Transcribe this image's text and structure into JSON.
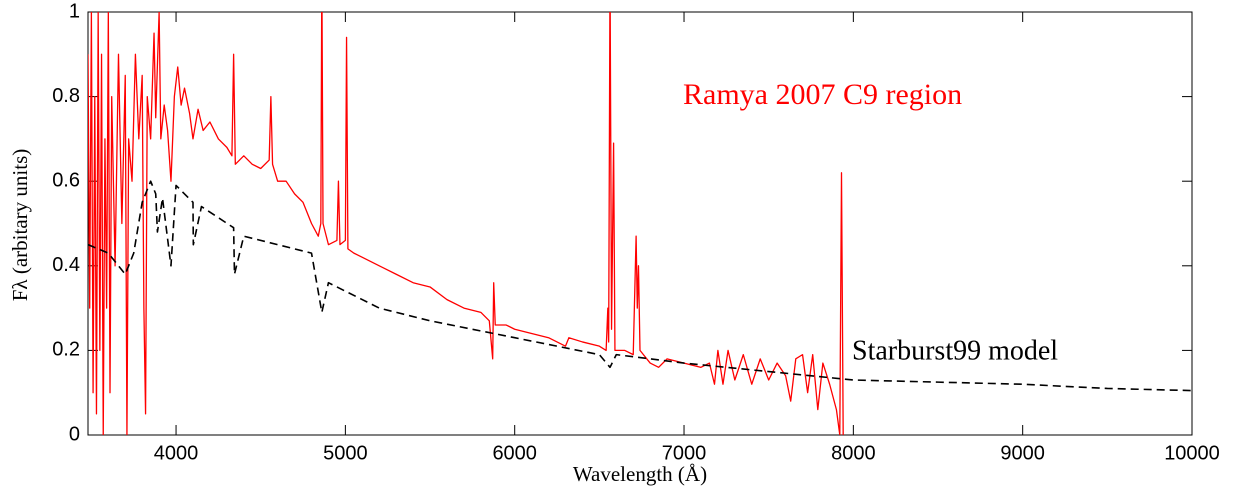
{
  "chart_data": {
    "type": "line",
    "x_label": "Wavelength (Å)",
    "y_label": "Fλ (arbitary units)",
    "xlim": [
      3480,
      10000
    ],
    "xticks": [
      4000,
      5000,
      6000,
      7000,
      8000,
      9000,
      10000
    ],
    "ylim": [
      0,
      1
    ],
    "yticks": [
      0,
      0.2,
      0.4,
      0.6,
      0.8,
      1
    ],
    "grid": false,
    "series": [
      {
        "name": "Ramya 2007 C9 region",
        "color": "#ff0000",
        "dash": false,
        "x": [
          3480,
          3490,
          3500,
          3510,
          3520,
          3530,
          3540,
          3550,
          3560,
          3570,
          3580,
          3590,
          3600,
          3610,
          3620,
          3640,
          3660,
          3680,
          3700,
          3710,
          3720,
          3740,
          3760,
          3780,
          3800,
          3810,
          3820,
          3830,
          3850,
          3870,
          3880,
          3900,
          3910,
          3930,
          3950,
          3970,
          3990,
          4010,
          4030,
          4050,
          4080,
          4100,
          4130,
          4160,
          4200,
          4250,
          4300,
          4330,
          4340,
          4350,
          4400,
          4450,
          4500,
          4550,
          4560,
          4570,
          4600,
          4650,
          4700,
          4750,
          4800,
          4840,
          4855,
          4861,
          4868,
          4900,
          4950,
          4959,
          4968,
          5000,
          5007,
          5015,
          5050,
          5100,
          5200,
          5300,
          5400,
          5500,
          5600,
          5700,
          5800,
          5850,
          5870,
          5876,
          5885,
          5950,
          6000,
          6100,
          6200,
          6300,
          6320,
          6400,
          6500,
          6540,
          6550,
          6555,
          6563,
          6572,
          6584,
          6592,
          6650,
          6700,
          6717,
          6724,
          6731,
          6740,
          6800,
          6850,
          6900,
          7000,
          7100,
          7150,
          7180,
          7200,
          7230,
          7260,
          7300,
          7350,
          7400,
          7450,
          7500,
          7550,
          7600,
          7630,
          7660,
          7700,
          7730,
          7760,
          7790,
          7820,
          7860,
          7900,
          7920,
          7930,
          7940
        ],
        "values": [
          0.9,
          0.3,
          1.0,
          0.1,
          0.8,
          0.05,
          1.0,
          0.2,
          0.9,
          0.0,
          0.7,
          0.3,
          1.0,
          0.1,
          0.8,
          0.4,
          0.9,
          0.5,
          0.85,
          0.0,
          0.7,
          0.6,
          0.9,
          0.7,
          0.85,
          0.3,
          0.05,
          0.8,
          0.7,
          0.95,
          0.75,
          1.0,
          0.7,
          0.78,
          0.72,
          0.6,
          0.8,
          0.87,
          0.78,
          0.82,
          0.76,
          0.7,
          0.77,
          0.72,
          0.74,
          0.7,
          0.68,
          0.66,
          0.9,
          0.64,
          0.66,
          0.64,
          0.63,
          0.65,
          0.8,
          0.64,
          0.6,
          0.6,
          0.57,
          0.55,
          0.5,
          0.47,
          0.5,
          1.1,
          0.5,
          0.45,
          0.46,
          0.6,
          0.45,
          0.46,
          0.94,
          0.44,
          0.43,
          0.42,
          0.4,
          0.38,
          0.36,
          0.35,
          0.32,
          0.3,
          0.29,
          0.27,
          0.18,
          0.36,
          0.26,
          0.26,
          0.25,
          0.24,
          0.23,
          0.21,
          0.23,
          0.22,
          0.21,
          0.2,
          0.3,
          0.22,
          1.1,
          0.25,
          0.69,
          0.2,
          0.2,
          0.19,
          0.47,
          0.3,
          0.4,
          0.2,
          0.17,
          0.16,
          0.18,
          0.17,
          0.16,
          0.17,
          0.12,
          0.2,
          0.12,
          0.2,
          0.13,
          0.19,
          0.12,
          0.18,
          0.13,
          0.17,
          0.14,
          0.08,
          0.18,
          0.19,
          0.1,
          0.19,
          0.06,
          0.17,
          0.12,
          0.06,
          0.0,
          0.62,
          0.0
        ]
      },
      {
        "name": "Starburst99 model",
        "color": "#000000",
        "dash": true,
        "x": [
          3480,
          3600,
          3700,
          3750,
          3800,
          3850,
          3880,
          3890,
          3920,
          3970,
          4000,
          4100,
          4102,
          4150,
          4340,
          4345,
          4400,
          4800,
          4861,
          4900,
          5200,
          5500,
          6000,
          6500,
          6563,
          6600,
          7000,
          7500,
          8000,
          8500,
          9000,
          9500,
          10000
        ],
        "values": [
          0.45,
          0.43,
          0.38,
          0.43,
          0.55,
          0.6,
          0.57,
          0.48,
          0.56,
          0.4,
          0.59,
          0.55,
          0.45,
          0.54,
          0.49,
          0.38,
          0.47,
          0.43,
          0.29,
          0.36,
          0.3,
          0.27,
          0.23,
          0.19,
          0.16,
          0.19,
          0.17,
          0.15,
          0.13,
          0.125,
          0.12,
          0.11,
          0.105
        ]
      }
    ]
  }
}
